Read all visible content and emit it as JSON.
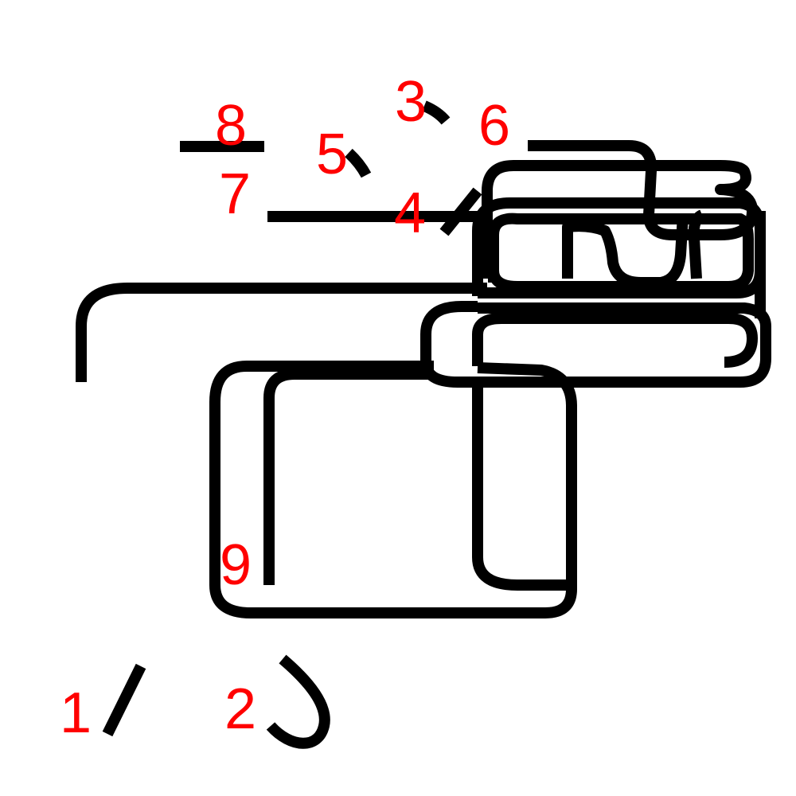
{
  "colors": {
    "stroke": "#000000",
    "label": "#ff0000",
    "background": "#ffffff"
  },
  "labels": {
    "one": "1",
    "two": "2",
    "three": "3",
    "four": "4",
    "five": "5",
    "six": "6",
    "seven": "7",
    "eight": "8",
    "nine": "9"
  }
}
